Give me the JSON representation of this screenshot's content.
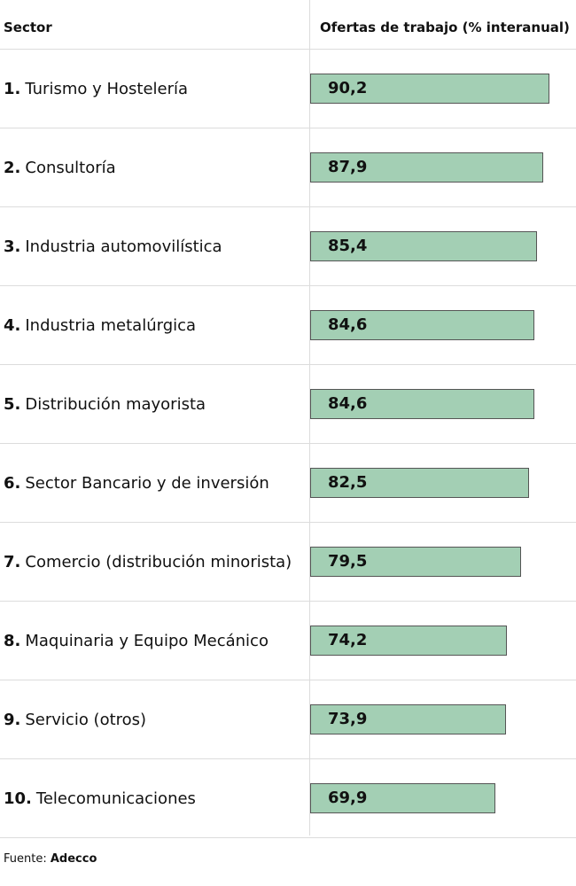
{
  "header": {
    "sector_label": "Sector",
    "value_label": "Ofertas de trabajo (% interanual)"
  },
  "colors": {
    "bar_fill": "#a3cfb4",
    "bar_border": "#555555",
    "divider": "#dcdcdc"
  },
  "chart_data": {
    "type": "bar",
    "orientation": "horizontal",
    "title": "",
    "xlabel": "Ofertas de trabajo (% interanual)",
    "ylabel": "Sector",
    "xlim": [
      0,
      90.2
    ],
    "grid": false,
    "categories": [
      "Turismo y Hostelería",
      "Consultoría",
      "Industria automovilística",
      "Industria metalúrgica",
      "Distribución mayorista",
      "Sector Bancario y de inversión",
      "Comercio (distribución minorista)",
      "Maquinaria y Equipo Mecánico",
      "Servicio (otros)",
      "Telecomunicaciones"
    ],
    "ranks": [
      "1.",
      "2.",
      "3.",
      "4.",
      "5.",
      "6.",
      "7.",
      "8.",
      "9.",
      "10."
    ],
    "values": [
      90.2,
      87.9,
      85.4,
      84.6,
      84.6,
      82.5,
      79.5,
      74.2,
      73.9,
      69.9
    ],
    "value_labels": [
      "90,2",
      "87,9",
      "85,4",
      "84,6",
      "84,6",
      "82,5",
      "79,5",
      "74,2",
      "73,9",
      "69,9"
    ]
  },
  "source": {
    "prefix": "Fuente:",
    "name": "Adecco"
  }
}
